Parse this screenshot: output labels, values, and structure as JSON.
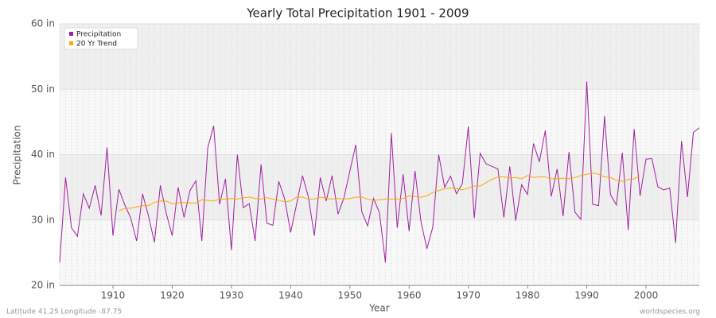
{
  "chart_data": {
    "type": "line",
    "title": "Yearly Total Precipitation 1901 - 2009",
    "x_label": "Year",
    "y_label": "Precipitation",
    "footer_left": "Latitude 41.25 Longitude -87.75",
    "footer_right": "worldspecies.org",
    "legend": "top-left",
    "grid": true,
    "xlim": [
      1901,
      2009
    ],
    "xticks": [
      1910,
      1920,
      1930,
      1940,
      1950,
      1960,
      1970,
      1980,
      1990,
      2000
    ],
    "ylim": [
      20,
      60
    ],
    "yticks": [
      {
        "value": 20,
        "label": "20 in"
      },
      {
        "value": 30,
        "label": "30 in"
      },
      {
        "value": 40,
        "label": "40 in"
      },
      {
        "value": 50,
        "label": "50 in"
      },
      {
        "value": 60,
        "label": "60 in"
      }
    ],
    "x": [
      1901,
      1902,
      1903,
      1904,
      1905,
      1906,
      1907,
      1908,
      1909,
      1910,
      1911,
      1912,
      1913,
      1914,
      1915,
      1916,
      1917,
      1918,
      1919,
      1920,
      1921,
      1922,
      1923,
      1924,
      1925,
      1926,
      1927,
      1928,
      1929,
      1930,
      1931,
      1932,
      1933,
      1934,
      1935,
      1936,
      1937,
      1938,
      1939,
      1940,
      1941,
      1942,
      1943,
      1944,
      1945,
      1946,
      1947,
      1948,
      1949,
      1950,
      1951,
      1952,
      1953,
      1954,
      1955,
      1956,
      1957,
      1958,
      1959,
      1960,
      1961,
      1962,
      1963,
      1964,
      1965,
      1966,
      1967,
      1968,
      1969,
      1970,
      1971,
      1972,
      1973,
      1974,
      1975,
      1976,
      1977,
      1978,
      1979,
      1980,
      1981,
      1982,
      1983,
      1984,
      1985,
      1986,
      1987,
      1988,
      1989,
      1990,
      1991,
      1992,
      1993,
      1994,
      1995,
      1996,
      1997,
      1998,
      1999,
      2000,
      2001,
      2002,
      2003,
      2004,
      2005,
      2006,
      2007,
      2008,
      2009
    ],
    "series": [
      {
        "name": "Precipitation",
        "color": "#a020a0",
        "values": [
          23.5,
          36.5,
          28.8,
          27.5,
          34,
          31.8,
          35.3,
          30.7,
          41.1,
          27.6,
          34.7,
          32.3,
          30.3,
          26.8,
          34,
          30.6,
          26.6,
          35.3,
          31,
          27.6,
          35,
          30.4,
          34.5,
          36,
          26.8,
          41,
          44.4,
          32.4,
          36.3,
          25.4,
          40,
          31.9,
          32.5,
          26.8,
          38.5,
          29.5,
          29.2,
          35.9,
          33.2,
          28.1,
          32.4,
          36.8,
          33.5,
          27.6,
          36.5,
          32.9,
          36.8,
          30.9,
          33.4,
          37.5,
          41.5,
          31.3,
          29.1,
          33.3,
          31.1,
          23.5,
          43.3,
          28.8,
          37,
          28.3,
          37.5,
          29.8,
          25.6,
          28.9,
          40,
          35,
          36.7,
          34,
          35.6,
          44.3,
          30.3,
          40.2,
          38.6,
          38.2,
          37.8,
          30.4,
          38.2,
          29.9,
          35.4,
          33.9,
          41.7,
          38.9,
          43.7,
          33.6,
          37.8,
          30.6,
          40.4,
          31.2,
          30.1,
          51.2,
          32.4,
          32.2,
          45.9,
          33.9,
          32.3,
          40.3,
          28.5,
          43.9,
          33.7,
          39.3,
          39.4,
          35.1,
          34.6,
          34.9,
          26.5,
          42.1,
          33.5,
          43.4,
          44.1
        ]
      },
      {
        "name": "20 Yr Trend",
        "color": "#ffa500",
        "values": [
          null,
          null,
          null,
          null,
          null,
          null,
          null,
          null,
          null,
          null,
          31.4,
          31.8,
          31.8,
          32,
          32.2,
          32.2,
          32.7,
          32.9,
          32.9,
          32.5,
          32.6,
          32.7,
          32.6,
          32.6,
          33.1,
          33,
          32.9,
          33.2,
          33.2,
          33.3,
          33.2,
          33.4,
          33.5,
          33.3,
          33.2,
          33.4,
          33.2,
          33,
          32.8,
          32.9,
          33.5,
          33.5,
          33.2,
          33.2,
          33.5,
          33.3,
          33.2,
          33.3,
          33.2,
          33.3,
          33.5,
          33.5,
          33.2,
          33,
          33.1,
          33.2,
          33.2,
          33.2,
          33.3,
          33.7,
          33.6,
          33.5,
          33.7,
          34.2,
          34.5,
          34.8,
          34.9,
          34.8,
          34.6,
          34.9,
          35.2,
          35.2,
          35.7,
          36.2,
          36.6,
          36.6,
          36.4,
          36.5,
          36.3,
          36.8,
          36.5,
          36.6,
          36.6,
          36.3,
          36.3,
          36.4,
          36.3,
          36.5,
          36.8,
          37,
          37.2,
          37,
          36.6,
          36.5,
          36.1,
          35.9,
          36.2,
          36.3,
          36.8,
          null,
          null,
          null,
          null,
          null,
          null,
          null,
          null,
          null,
          null
        ]
      }
    ]
  }
}
